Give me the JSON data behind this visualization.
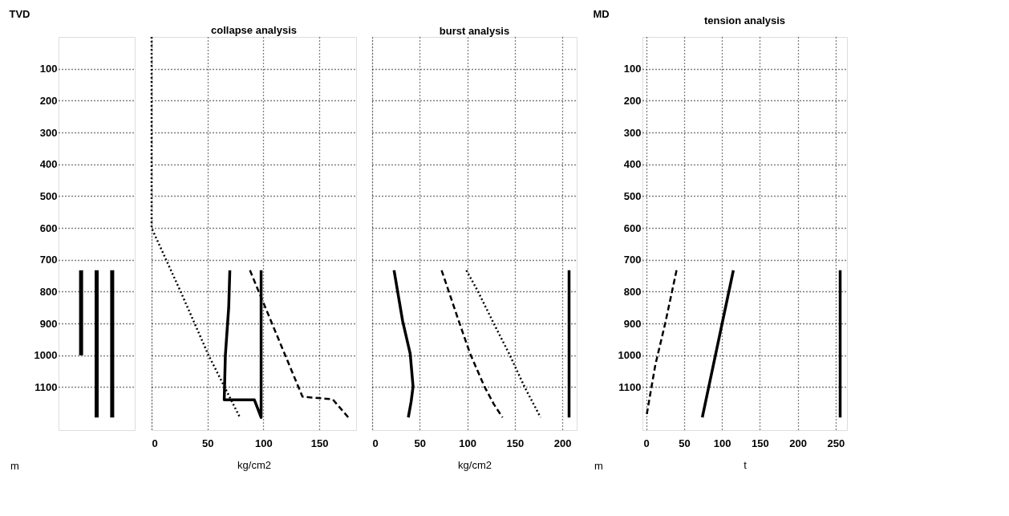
{
  "chart_data": [
    {
      "type": "bar",
      "ylabel": "TVD",
      "annotations": [
        "m"
      ],
      "categories": [
        null,
        null,
        null
      ],
      "base": [
        733,
        733,
        733
      ],
      "values": [
        267,
        462,
        462
      ],
      "colors": [
        "#000000",
        "#000000",
        "#000000"
      ],
      "ylim": [
        1235,
        0
      ],
      "yticks": [
        100,
        200,
        300,
        400,
        500,
        600,
        700,
        800,
        900,
        1000,
        1100
      ],
      "grid": "y",
      "tick_labels": "y"
    },
    {
      "type": "line",
      "title": "collapse analysis",
      "xlabel": "kg/cm2",
      "xlim": [
        0,
        183
      ],
      "xticks": [
        0,
        50,
        100,
        150
      ],
      "ylim": [
        1235,
        0
      ],
      "yticks": [
        100,
        200,
        300,
        400,
        500,
        600,
        700,
        800,
        900,
        1000,
        1100
      ],
      "grid": true,
      "tick_labels": "x",
      "series": [
        {
          "color": "#000000",
          "line_style": "dotted",
          "x": [
            0,
            0,
            26,
            51,
            79
          ],
          "values": [
            0,
            600,
            800,
            1000,
            1195
          ]
        },
        {
          "color": "#000000",
          "line_style": "solid",
          "x": [
            70,
            69,
            66,
            65,
            92,
            98,
            98
          ],
          "values": [
            733,
            850,
            1000,
            1140,
            1140,
            1195,
            733
          ]
        },
        {
          "color": "#000000",
          "line_style": "dashed",
          "x": [
            88,
            96,
            135,
            162,
            176
          ],
          "values": [
            733,
            801,
            1130,
            1138,
            1195
          ]
        }
      ]
    },
    {
      "type": "line",
      "title": "burst analysis",
      "xlabel": "kg/cm2",
      "xlim": [
        0,
        215
      ],
      "xticks": [
        0,
        50,
        100,
        150,
        200
      ],
      "ylim": [
        1235,
        0
      ],
      "yticks": [
        100,
        200,
        300,
        400,
        500,
        600,
        700,
        800,
        900,
        1000,
        1100
      ],
      "grid": true,
      "tick_labels": "x",
      "series": [
        {
          "color": "#000000",
          "line_style": "solid",
          "x": [
            23,
            32,
            40,
            43,
            41,
            38
          ],
          "values": [
            733,
            892,
            995,
            1098,
            1145,
            1195
          ]
        },
        {
          "color": "#000000",
          "line_style": "dashed",
          "x": [
            73,
            91,
            103,
            118,
            128,
            137
          ],
          "values": [
            733,
            892,
            995,
            1098,
            1154,
            1195
          ]
        },
        {
          "color": "#000000",
          "line_style": "dotted",
          "x": [
            99,
            111,
            128,
            144,
            160,
            177
          ],
          "values": [
            733,
            798,
            901,
            995,
            1098,
            1195
          ]
        },
        {
          "color": "#000000",
          "line_style": "solid",
          "x": [
            207,
            207
          ],
          "values": [
            733,
            1195
          ]
        }
      ]
    },
    {
      "type": "line",
      "title": "tension analysis",
      "ylabel": "MD",
      "xlabel": "t",
      "annotations": [
        "m"
      ],
      "xlim": [
        -5,
        265
      ],
      "xticks": [
        0,
        50,
        100,
        150,
        200,
        250
      ],
      "ylim": [
        1235,
        0
      ],
      "yticks": [
        100,
        200,
        300,
        400,
        500,
        600,
        700,
        800,
        900,
        1000,
        1100
      ],
      "grid": true,
      "series": [
        {
          "color": "#000000",
          "line_style": "dashed",
          "x": [
            40,
            25,
            12,
            0
          ],
          "values": [
            733,
            900,
            1030,
            1195
          ]
        },
        {
          "color": "#000000",
          "line_style": "solid",
          "x": [
            115,
            74
          ],
          "values": [
            733,
            1195
          ]
        },
        {
          "color": "#000000",
          "line_style": "solid",
          "x": [
            256,
            256
          ],
          "values": [
            733,
            1195
          ]
        }
      ]
    }
  ]
}
